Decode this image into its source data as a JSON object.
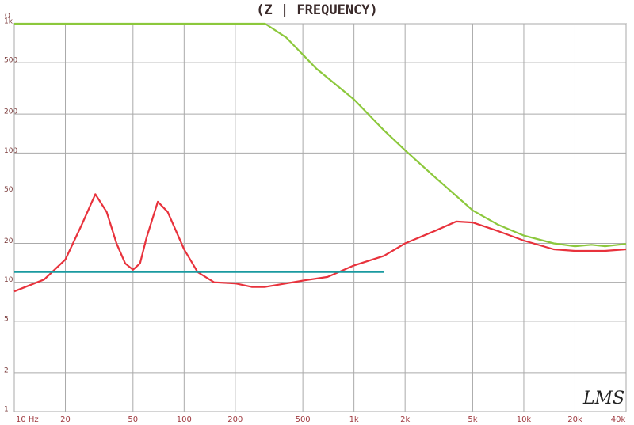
{
  "chart_data": {
    "type": "line",
    "title": "(Z | FREQUENCY)",
    "ylabel": "Ω",
    "watermark": "LMS",
    "xscale": "log",
    "yscale": "log",
    "grid": true,
    "xlim": [
      10,
      40000
    ],
    "ylim": [
      1,
      1000
    ],
    "xticks": [
      {
        "value": 10,
        "label": "10 Hz"
      },
      20,
      50,
      100,
      200,
      500,
      {
        "value": 1000,
        "label": "1k"
      },
      {
        "value": 2000,
        "label": "2k"
      },
      {
        "value": 5000,
        "label": "5k"
      },
      {
        "value": 10000,
        "label": "10k"
      },
      {
        "value": 20000,
        "label": "20k"
      },
      {
        "value": 40000,
        "label": "40k"
      }
    ],
    "yticks": [
      1,
      2,
      5,
      10,
      20,
      50,
      100,
      200,
      500,
      {
        "value": 1000,
        "label": "1k"
      }
    ],
    "series": [
      {
        "color": "#8cc83c",
        "x": [
          10,
          300,
          400,
          600,
          1000,
          1500,
          2000,
          3000,
          5000,
          7000,
          10000,
          15000,
          20000,
          25000,
          30000,
          40000
        ],
        "values": [
          1000,
          1000,
          780,
          450,
          260,
          150,
          105,
          65,
          36,
          28,
          23,
          20,
          19,
          19.5,
          19,
          19.8
        ]
      },
      {
        "color": "#e8323c",
        "x": [
          10,
          15,
          20,
          25,
          30,
          35,
          40,
          45,
          50,
          55,
          60,
          70,
          80,
          100,
          120,
          150,
          200,
          250,
          300,
          400,
          500,
          700,
          1000,
          1500,
          2000,
          3000,
          4000,
          5000,
          7000,
          10000,
          15000,
          20000,
          30000,
          40000
        ],
        "values": [
          8.5,
          10.5,
          15,
          28,
          48,
          35,
          20,
          14,
          12.5,
          14,
          22,
          42,
          35,
          18,
          12,
          10,
          9.8,
          9.2,
          9.2,
          9.8,
          10.3,
          11,
          13.5,
          16,
          20,
          25,
          29.5,
          29,
          25,
          21,
          18,
          17.5,
          17.5,
          18
        ]
      },
      {
        "color": "#1a9aa0",
        "x": [
          10,
          1500
        ],
        "values": [
          12,
          12
        ]
      }
    ]
  }
}
